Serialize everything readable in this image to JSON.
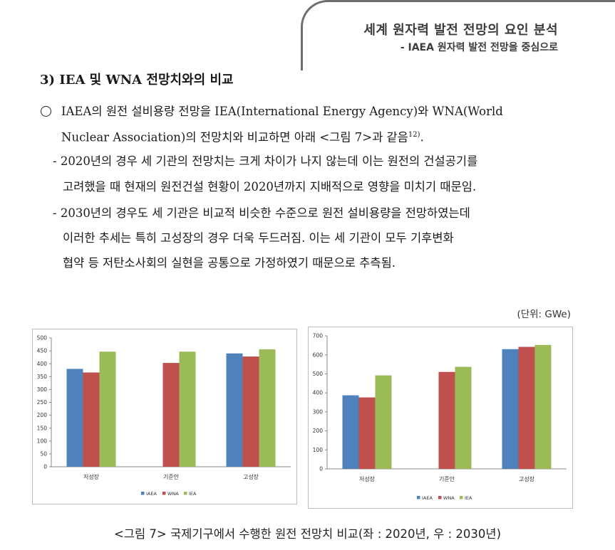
{
  "header": {
    "title": "세계 원자력 발전 전망의 요인 분석",
    "subtitle": "- IAEA 원자력 발전 전망을 중심으로"
  },
  "section": {
    "title": "3) IEA 및 WNA 전망치와의 비교"
  },
  "body": {
    "p1_line1": "IAEA의 원전 설비용량 전망을 IEA(International Energy Agency)와 WNA(World",
    "p1_line2": "Nuclear Association)의 전망치와 비교하면 아래 <그림 7>과 같음",
    "p1_footnote": "12)",
    "p1_end": ".",
    "p2_line1": "- 2020년의 경우 세 기관의 전망치는 크게 차이가 나지 않는데 이는 원전의 건설공기를",
    "p2_line2": "고려했을 때 현재의 원전건설 현황이 2020년까지 지배적으로 영향을 미치기 때문임.",
    "p3_line1": "- 2030년의 경우도 세 기관은 비교적 비슷한 수준으로 원전 설비용량을 전망하였는데",
    "p3_line2": "이러한 추세는 특히 고성장의 경우 더욱 두드러짐. 이는 세 기관이 모두 기후변화",
    "p3_line3": "협약 등 저탄소사회의 실현을 공통으로 가정하였기 때문으로 추측됨."
  },
  "unit_label": "(단위: GWe)",
  "caption": "<그림 7> 국제기구에서 수행한 원전 전망치 비교(좌 : 2020년, 우 : 2030년)",
  "colors": {
    "IAEA": "#4f81bd",
    "WNA": "#c0504d",
    "IEA": "#9bbb59"
  },
  "chart_data": [
    {
      "type": "bar",
      "categories": [
        "저성장",
        "기준안",
        "고성장"
      ],
      "series": [
        {
          "name": "IAEA",
          "values": [
            380,
            null,
            440
          ]
        },
        {
          "name": "WNA",
          "values": [
            366,
            403,
            428
          ]
        },
        {
          "name": "IEA",
          "values": [
            447,
            447,
            456
          ]
        }
      ],
      "ylim": [
        0,
        500
      ],
      "yticks": [
        0,
        50,
        100,
        150,
        200,
        250,
        300,
        350,
        400,
        450,
        500
      ],
      "legend": "bottom",
      "grid": false
    },
    {
      "type": "bar",
      "categories": [
        "저성장",
        "기준안",
        "고성장"
      ],
      "series": [
        {
          "name": "IAEA",
          "values": [
            387,
            null,
            630
          ]
        },
        {
          "name": "WNA",
          "values": [
            376,
            510,
            642
          ]
        },
        {
          "name": "IEA",
          "values": [
            492,
            537,
            652
          ]
        }
      ],
      "ylim": [
        0,
        700
      ],
      "yticks": [
        0,
        100,
        200,
        300,
        400,
        500,
        600,
        700
      ],
      "legend": "bottom",
      "grid": false
    }
  ]
}
